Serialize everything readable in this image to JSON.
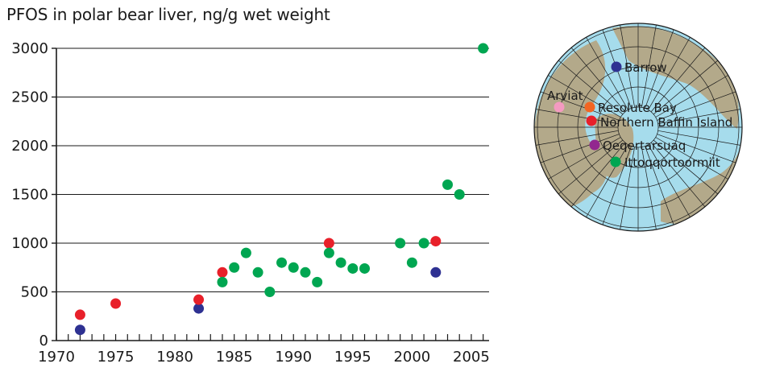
{
  "chart_data": {
    "type": "scatter",
    "title": "PFOS in polar bear liver, ng/g wet weight",
    "xlim": [
      1970,
      2006.5
    ],
    "ylim": [
      0,
      3000
    ],
    "xticks": [
      1970,
      1975,
      1980,
      1985,
      1990,
      1995,
      2000,
      2005
    ],
    "yticks": [
      0,
      500,
      1000,
      1500,
      2000,
      2500,
      3000
    ],
    "grid": "horizontal",
    "series": [
      {
        "name": "Barrow",
        "color": "#2e3192",
        "points": [
          [
            1972,
            110
          ],
          [
            1982,
            330
          ],
          [
            2002,
            700
          ]
        ]
      },
      {
        "name": "Northern Baffin Island",
        "color": "#e8202a",
        "points": [
          [
            1972,
            265
          ],
          [
            1975,
            380
          ],
          [
            1982,
            420
          ],
          [
            1984,
            700
          ],
          [
            1993,
            1000
          ],
          [
            2002,
            1020
          ]
        ]
      },
      {
        "name": "Ittoqqortoormiit",
        "color": "#00a651",
        "points": [
          [
            1984,
            600
          ],
          [
            1985,
            750
          ],
          [
            1986,
            900
          ],
          [
            1987,
            700
          ],
          [
            1988,
            500
          ],
          [
            1989,
            800
          ],
          [
            1990,
            750
          ],
          [
            1991,
            700
          ],
          [
            1992,
            600
          ],
          [
            1993,
            900
          ],
          [
            1994,
            800
          ],
          [
            1995,
            740
          ],
          [
            1996,
            740
          ],
          [
            1999,
            1000
          ],
          [
            2000,
            800
          ],
          [
            2001,
            1000
          ],
          [
            2003,
            1600
          ],
          [
            2004,
            1500
          ],
          [
            2006,
            3000
          ]
        ]
      }
    ]
  },
  "map": {
    "locations": [
      {
        "name": "Barrow",
        "color": "#2e3192"
      },
      {
        "name": "Arviat",
        "color": "#f49ac1"
      },
      {
        "name": "Resolute Bay",
        "color": "#f26522"
      },
      {
        "name": "Northern Baffin Island",
        "color": "#e8202a"
      },
      {
        "name": "Qeqertarsuaq",
        "color": "#92278f"
      },
      {
        "name": "Ittoqqortoormiit",
        "color": "#00a651"
      }
    ]
  }
}
